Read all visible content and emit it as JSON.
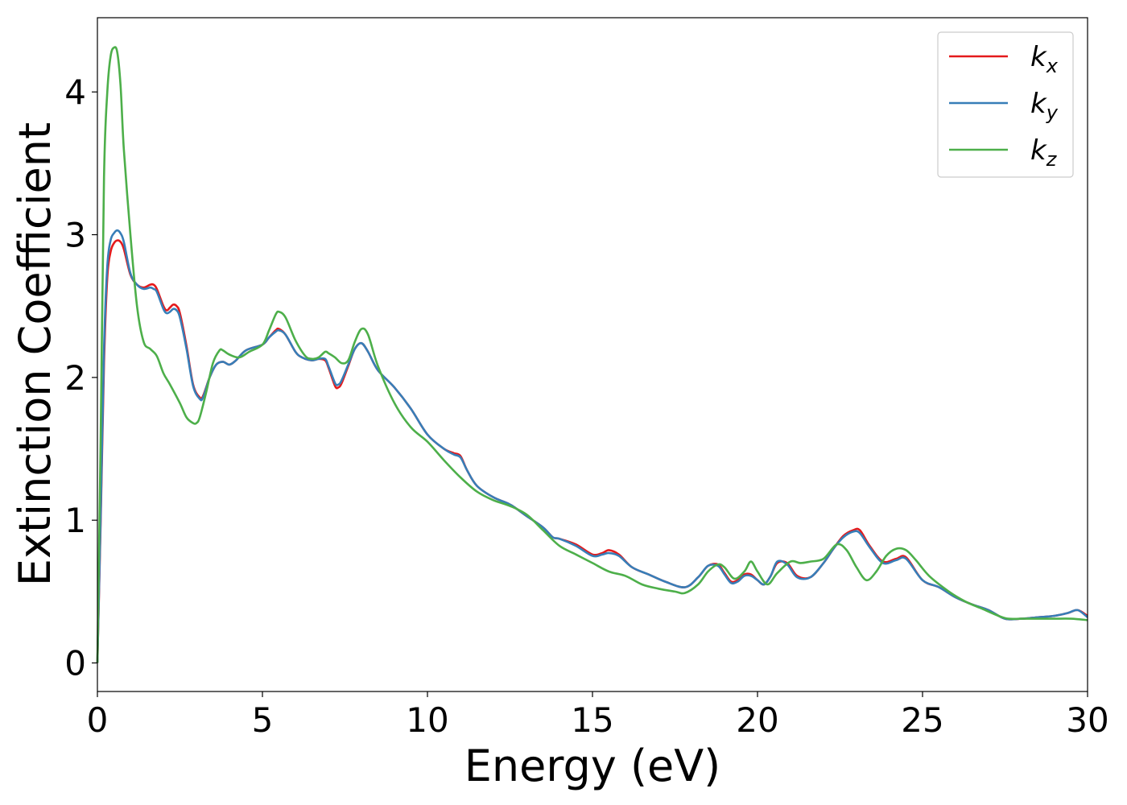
{
  "chart_data": {
    "type": "line",
    "title": "",
    "xlabel": "Energy (eV)",
    "ylabel": "Extinction Coefficient",
    "xlim": [
      0,
      30
    ],
    "ylim": [
      -0.2,
      4.52
    ],
    "xticks": [
      "0",
      "5",
      "10",
      "15",
      "20",
      "25",
      "30"
    ],
    "yticks": [
      "0",
      "1",
      "2",
      "3",
      "4"
    ],
    "grid": false,
    "legend": "top-right",
    "series": [
      {
        "name": "kx",
        "base": "k",
        "sub": "x",
        "color": "#e41a1c",
        "x": [
          0,
          0.1,
          0.2,
          0.3,
          0.4,
          0.5,
          0.6,
          0.7,
          0.8,
          1.0,
          1.2,
          1.4,
          1.6,
          1.7,
          1.8,
          2.0,
          2.1,
          2.2,
          2.3,
          2.4,
          2.5,
          2.7,
          2.9,
          3.1,
          3.2,
          3.4,
          3.6,
          3.8,
          4.0,
          4.2,
          4.5,
          5.0,
          5.2,
          5.4,
          5.5,
          5.7,
          6.0,
          6.2,
          6.5,
          6.7,
          6.9,
          7.0,
          7.2,
          7.3,
          7.4,
          7.6,
          7.8,
          8.0,
          8.2,
          8.5,
          9.0,
          9.5,
          10.0,
          10.5,
          10.8,
          11.0,
          11.2,
          11.5,
          12.0,
          12.5,
          13.0,
          13.5,
          13.8,
          14.0,
          14.5,
          15.0,
          15.3,
          15.5,
          15.8,
          16.2,
          16.7,
          17.2,
          17.8,
          18.2,
          18.5,
          18.8,
          19.0,
          19.2,
          19.4,
          19.6,
          19.8,
          20.0,
          20.2,
          20.4,
          20.6,
          20.9,
          21.2,
          21.6,
          22.0,
          22.3,
          22.6,
          22.9,
          23.1,
          23.4,
          23.8,
          24.2,
          24.5,
          25.0,
          25.5,
          26.0,
          26.5,
          27.0,
          27.5,
          28.0,
          28.5,
          29.0,
          29.4,
          29.7,
          30.0
        ],
        "y": [
          0,
          1.0,
          2.1,
          2.7,
          2.88,
          2.94,
          2.96,
          2.95,
          2.9,
          2.72,
          2.65,
          2.63,
          2.65,
          2.65,
          2.62,
          2.5,
          2.47,
          2.49,
          2.51,
          2.5,
          2.45,
          2.22,
          1.95,
          1.86,
          1.87,
          2.0,
          2.09,
          2.11,
          2.09,
          2.12,
          2.19,
          2.23,
          2.28,
          2.33,
          2.34,
          2.3,
          2.18,
          2.14,
          2.12,
          2.13,
          2.12,
          2.07,
          1.94,
          1.93,
          1.96,
          2.08,
          2.2,
          2.24,
          2.18,
          2.05,
          1.93,
          1.78,
          1.6,
          1.5,
          1.47,
          1.45,
          1.35,
          1.24,
          1.16,
          1.11,
          1.03,
          0.95,
          0.88,
          0.87,
          0.83,
          0.76,
          0.77,
          0.79,
          0.76,
          0.67,
          0.62,
          0.57,
          0.53,
          0.6,
          0.68,
          0.69,
          0.63,
          0.57,
          0.58,
          0.62,
          0.62,
          0.58,
          0.55,
          0.61,
          0.7,
          0.7,
          0.61,
          0.6,
          0.7,
          0.8,
          0.89,
          0.93,
          0.93,
          0.82,
          0.71,
          0.73,
          0.74,
          0.58,
          0.53,
          0.46,
          0.41,
          0.37,
          0.31,
          0.31,
          0.32,
          0.33,
          0.35,
          0.37,
          0.33
        ]
      },
      {
        "name": "ky",
        "base": "k",
        "sub": "y",
        "color": "#377eb8",
        "x": [
          0,
          0.1,
          0.2,
          0.3,
          0.4,
          0.5,
          0.6,
          0.7,
          0.8,
          1.0,
          1.2,
          1.4,
          1.6,
          1.7,
          1.8,
          2.0,
          2.1,
          2.2,
          2.3,
          2.4,
          2.5,
          2.7,
          2.9,
          3.1,
          3.2,
          3.4,
          3.6,
          3.8,
          4.0,
          4.2,
          4.5,
          5.0,
          5.2,
          5.4,
          5.5,
          5.7,
          6.0,
          6.2,
          6.5,
          6.7,
          6.9,
          7.0,
          7.2,
          7.3,
          7.4,
          7.6,
          7.8,
          8.0,
          8.2,
          8.5,
          9.0,
          9.5,
          10.0,
          10.5,
          10.8,
          11.0,
          11.2,
          11.5,
          12.0,
          12.5,
          13.0,
          13.5,
          13.8,
          14.0,
          14.5,
          15.0,
          15.3,
          15.5,
          15.8,
          16.2,
          16.7,
          17.2,
          17.8,
          18.2,
          18.5,
          18.8,
          19.0,
          19.2,
          19.4,
          19.6,
          19.8,
          20.0,
          20.2,
          20.4,
          20.6,
          20.9,
          21.2,
          21.6,
          22.0,
          22.3,
          22.6,
          22.9,
          23.1,
          23.4,
          23.8,
          24.2,
          24.5,
          25.0,
          25.5,
          26.0,
          26.5,
          27.0,
          27.5,
          28.0,
          28.5,
          29.0,
          29.4,
          29.7,
          30.0
        ],
        "y": [
          0,
          1.05,
          2.2,
          2.78,
          2.96,
          3.01,
          3.03,
          3.01,
          2.95,
          2.73,
          2.65,
          2.62,
          2.63,
          2.62,
          2.6,
          2.48,
          2.45,
          2.46,
          2.48,
          2.47,
          2.42,
          2.2,
          1.94,
          1.85,
          1.86,
          2.0,
          2.09,
          2.11,
          2.09,
          2.12,
          2.19,
          2.23,
          2.28,
          2.32,
          2.33,
          2.3,
          2.18,
          2.14,
          2.12,
          2.13,
          2.13,
          2.08,
          1.96,
          1.95,
          1.98,
          2.09,
          2.2,
          2.24,
          2.18,
          2.05,
          1.93,
          1.78,
          1.6,
          1.5,
          1.46,
          1.44,
          1.35,
          1.24,
          1.16,
          1.11,
          1.03,
          0.95,
          0.88,
          0.87,
          0.82,
          0.75,
          0.76,
          0.77,
          0.75,
          0.67,
          0.62,
          0.57,
          0.53,
          0.6,
          0.68,
          0.68,
          0.62,
          0.56,
          0.57,
          0.61,
          0.61,
          0.58,
          0.55,
          0.61,
          0.71,
          0.69,
          0.6,
          0.6,
          0.7,
          0.8,
          0.88,
          0.92,
          0.91,
          0.81,
          0.7,
          0.72,
          0.73,
          0.58,
          0.53,
          0.46,
          0.41,
          0.37,
          0.31,
          0.31,
          0.32,
          0.33,
          0.35,
          0.37,
          0.32
        ]
      },
      {
        "name": "kz",
        "base": "k",
        "sub": "z",
        "color": "#4daf4a",
        "x": [
          0,
          0.1,
          0.2,
          0.3,
          0.4,
          0.5,
          0.6,
          0.7,
          0.8,
          1.0,
          1.2,
          1.4,
          1.6,
          1.8,
          2.0,
          2.2,
          2.5,
          2.7,
          2.9,
          3.0,
          3.1,
          3.3,
          3.5,
          3.7,
          3.8,
          4.0,
          4.3,
          4.6,
          5.0,
          5.2,
          5.4,
          5.5,
          5.7,
          6.0,
          6.3,
          6.5,
          6.7,
          6.9,
          7.0,
          7.2,
          7.4,
          7.6,
          7.8,
          8.0,
          8.2,
          8.5,
          9.0,
          9.5,
          10.0,
          10.5,
          11.0,
          11.5,
          12.0,
          12.5,
          13.0,
          13.5,
          14.0,
          14.5,
          15.0,
          15.5,
          16.0,
          16.5,
          17.0,
          17.5,
          17.8,
          18.2,
          18.5,
          18.8,
          19.0,
          19.3,
          19.6,
          19.8,
          20.0,
          20.3,
          20.6,
          21.0,
          21.3,
          21.6,
          22.0,
          22.4,
          22.7,
          23.0,
          23.3,
          23.6,
          23.9,
          24.2,
          24.5,
          24.8,
          25.2,
          25.8,
          26.3,
          26.8,
          27.3,
          27.6,
          28.0,
          28.5,
          29.0,
          29.5,
          30.0
        ],
        "y": [
          0,
          1.6,
          3.4,
          4.0,
          4.25,
          4.31,
          4.28,
          4.05,
          3.6,
          3.0,
          2.5,
          2.25,
          2.2,
          2.15,
          2.03,
          1.95,
          1.82,
          1.72,
          1.68,
          1.68,
          1.72,
          1.9,
          2.1,
          2.19,
          2.19,
          2.16,
          2.14,
          2.18,
          2.23,
          2.33,
          2.44,
          2.46,
          2.42,
          2.26,
          2.15,
          2.13,
          2.14,
          2.18,
          2.17,
          2.14,
          2.1,
          2.12,
          2.25,
          2.34,
          2.3,
          2.08,
          1.82,
          1.65,
          1.55,
          1.42,
          1.3,
          1.2,
          1.14,
          1.1,
          1.04,
          0.93,
          0.82,
          0.76,
          0.7,
          0.64,
          0.61,
          0.55,
          0.52,
          0.5,
          0.49,
          0.55,
          0.64,
          0.69,
          0.67,
          0.59,
          0.64,
          0.71,
          0.64,
          0.55,
          0.63,
          0.71,
          0.7,
          0.71,
          0.73,
          0.83,
          0.79,
          0.67,
          0.58,
          0.64,
          0.75,
          0.8,
          0.79,
          0.72,
          0.61,
          0.5,
          0.43,
          0.38,
          0.33,
          0.31,
          0.31,
          0.31,
          0.31,
          0.31,
          0.3
        ]
      }
    ]
  }
}
